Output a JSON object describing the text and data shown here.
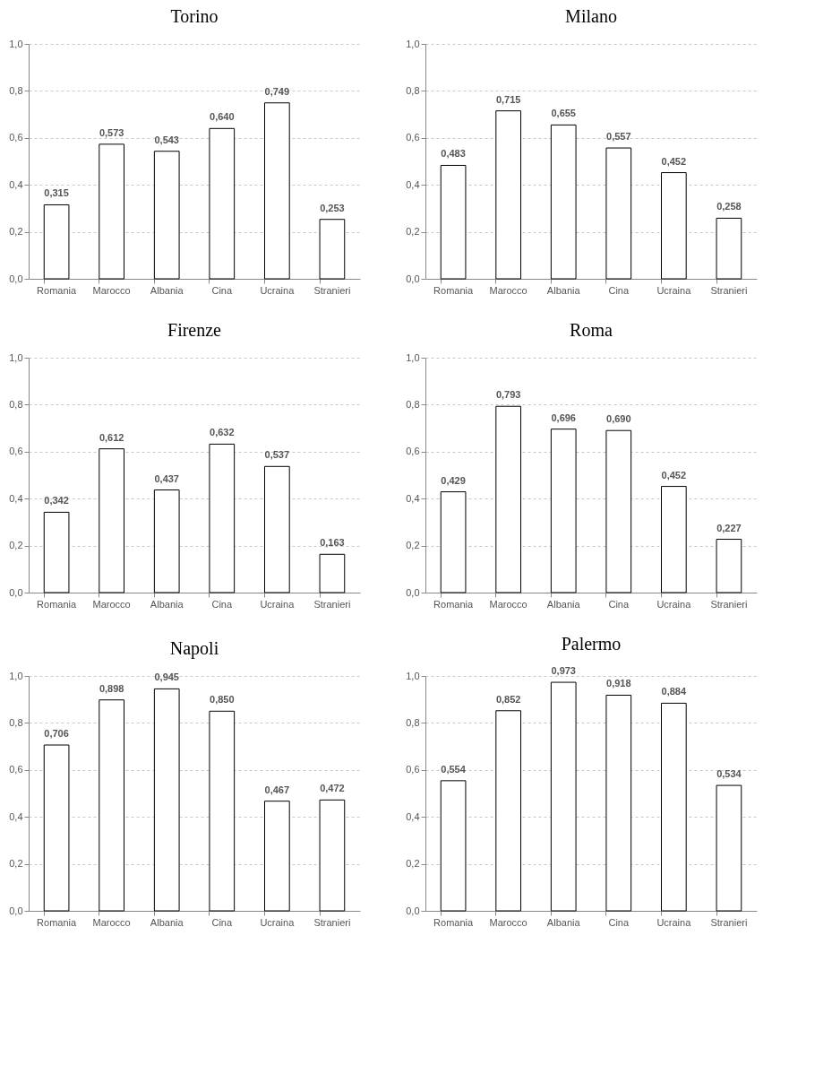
{
  "chart_data": [
    {
      "type": "bar",
      "title": "Torino",
      "categories": [
        "Romania",
        "Marocco",
        "Albania",
        "Cina",
        "Ucraina",
        "Stranieri"
      ],
      "values": [
        0.315,
        0.573,
        0.543,
        0.64,
        0.749,
        0.253
      ],
      "value_labels": [
        "0,315",
        "0,573",
        "0,543",
        "0,640",
        "0,749",
        "0,253"
      ],
      "color": "#ffffff",
      "ylim": [
        0,
        1
      ],
      "yticks": [
        {
          "value": 0,
          "label": "0,0"
        },
        {
          "value": 0.2,
          "label": "0,2"
        },
        {
          "value": 0.4,
          "label": "0,4"
        },
        {
          "value": 0.6,
          "label": "0,6"
        },
        {
          "value": 0.8,
          "label": "0,8"
        },
        {
          "value": 1,
          "label": "1,0"
        }
      ],
      "grid": "y"
    },
    {
      "type": "bar",
      "title": "Milano",
      "categories": [
        "Romania",
        "Marocco",
        "Albania",
        "Cina",
        "Ucraina",
        "Stranieri"
      ],
      "values": [
        0.483,
        0.715,
        0.655,
        0.557,
        0.452,
        0.258
      ],
      "value_labels": [
        "0,483",
        "0,715",
        "0,655",
        "0,557",
        "0,452",
        "0,258"
      ],
      "color": "#ffffff",
      "ylim": [
        0,
        1
      ],
      "yticks": [
        {
          "value": 0,
          "label": "0,0"
        },
        {
          "value": 0.2,
          "label": "0,2"
        },
        {
          "value": 0.4,
          "label": "0,4"
        },
        {
          "value": 0.6,
          "label": "0,6"
        },
        {
          "value": 0.8,
          "label": "0,8"
        },
        {
          "value": 1,
          "label": "1,0"
        }
      ],
      "grid": "y"
    },
    {
      "type": "bar",
      "title": "Firenze",
      "categories": [
        "Romania",
        "Marocco",
        "Albania",
        "Cina",
        "Ucraina",
        "Stranieri"
      ],
      "values": [
        0.342,
        0.612,
        0.437,
        0.632,
        0.537,
        0.163
      ],
      "value_labels": [
        "0,342",
        "0,612",
        "0,437",
        "0,632",
        "0,537",
        "0,163"
      ],
      "color": "#ffffff",
      "ylim": [
        0,
        1
      ],
      "yticks": [
        {
          "value": 0,
          "label": "0,0"
        },
        {
          "value": 0.2,
          "label": "0,2"
        },
        {
          "value": 0.4,
          "label": "0,4"
        },
        {
          "value": 0.6,
          "label": "0,6"
        },
        {
          "value": 0.8,
          "label": "0,8"
        },
        {
          "value": 1,
          "label": "1,0"
        }
      ],
      "grid": "y"
    },
    {
      "type": "bar",
      "title": "Roma",
      "categories": [
        "Romania",
        "Marocco",
        "Albania",
        "Cina",
        "Ucraina",
        "Stranieri"
      ],
      "values": [
        0.429,
        0.793,
        0.696,
        0.69,
        0.452,
        0.227
      ],
      "value_labels": [
        "0,429",
        "0,793",
        "0,696",
        "0,690",
        "0,452",
        "0,227"
      ],
      "color": "#ffffff",
      "ylim": [
        0,
        1
      ],
      "yticks": [
        {
          "value": 0,
          "label": "0,0"
        },
        {
          "value": 0.2,
          "label": "0,2"
        },
        {
          "value": 0.4,
          "label": "0,4"
        },
        {
          "value": 0.6,
          "label": "0,6"
        },
        {
          "value": 0.8,
          "label": "0,8"
        },
        {
          "value": 1,
          "label": "1,0"
        }
      ],
      "grid": "y"
    },
    {
      "type": "bar",
      "title": "Napoli",
      "categories": [
        "Romania",
        "Marocco",
        "Albania",
        "Cina",
        "Ucraina",
        "Stranieri"
      ],
      "values": [
        0.706,
        0.898,
        0.945,
        0.85,
        0.467,
        0.472
      ],
      "value_labels": [
        "0,706",
        "0,898",
        "0,945",
        "0,850",
        "0,467",
        "0,472"
      ],
      "color": "#ffffff",
      "ylim": [
        0,
        1
      ],
      "yticks": [
        {
          "value": 0,
          "label": "0,0"
        },
        {
          "value": 0.2,
          "label": "0,2"
        },
        {
          "value": 0.4,
          "label": "0,4"
        },
        {
          "value": 0.6,
          "label": "0,6"
        },
        {
          "value": 0.8,
          "label": "0,8"
        },
        {
          "value": 1,
          "label": "1,0"
        }
      ],
      "grid": "y"
    },
    {
      "type": "bar",
      "title": "Palermo",
      "categories": [
        "Romania",
        "Marocco",
        "Albania",
        "Cina",
        "Ucraina",
        "Stranieri"
      ],
      "values": [
        0.554,
        0.852,
        0.973,
        0.918,
        0.884,
        0.534
      ],
      "value_labels": [
        "0,554",
        "0,852",
        "0,973",
        "0,918",
        "0,884",
        "0,534"
      ],
      "color": "#ffffff",
      "ylim": [
        0,
        1
      ],
      "yticks": [
        {
          "value": 0,
          "label": "0,0"
        },
        {
          "value": 0.2,
          "label": "0,2"
        },
        {
          "value": 0.4,
          "label": "0,4"
        },
        {
          "value": 0.6,
          "label": "0,6"
        },
        {
          "value": 0.8,
          "label": "0,8"
        },
        {
          "value": 1,
          "label": "1,0"
        }
      ],
      "grid": "y"
    }
  ]
}
